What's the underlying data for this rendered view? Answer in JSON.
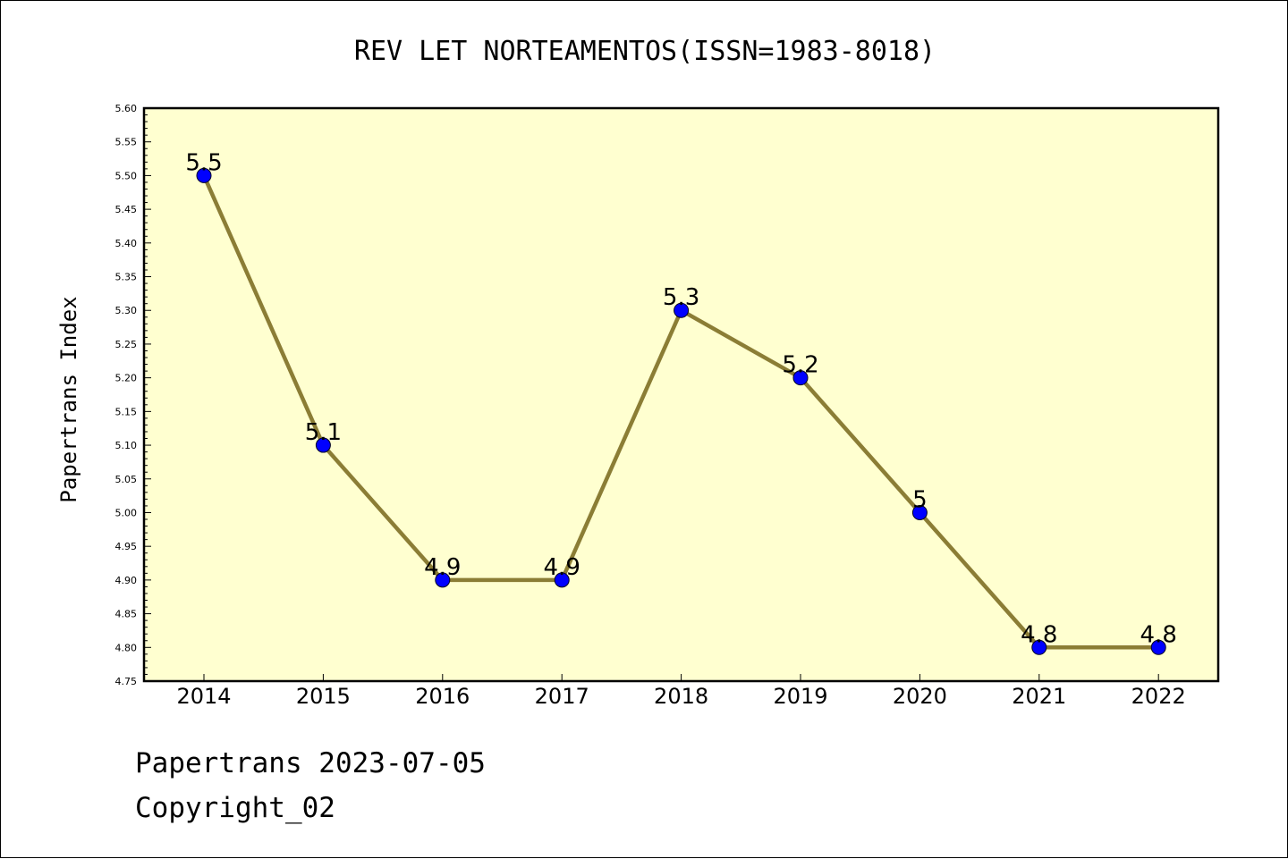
{
  "chart_data": {
    "type": "line",
    "title": "REV LET NORTEAMENTOS(ISSN=1983-8018)",
    "xlabel": "",
    "ylabel": "Papertrans Index",
    "categories": [
      "2014",
      "2015",
      "2016",
      "2017",
      "2018",
      "2019",
      "2020",
      "2021",
      "2022"
    ],
    "series": [
      {
        "values": [
          5.5,
          5.1,
          4.9,
          4.9,
          5.3,
          5.2,
          5.0,
          4.8,
          4.8
        ],
        "data_labels": [
          "5.5",
          "5.1",
          "4.9",
          "4.9",
          "5.3",
          "5.2",
          "5",
          "4.8",
          "4.8"
        ]
      }
    ],
    "ylim": [
      4.75,
      5.6
    ],
    "y_ticks": [
      "4.75",
      "4.80",
      "4.85",
      "4.90",
      "4.95",
      "5.00",
      "5.05",
      "5.10",
      "5.15",
      "5.20",
      "5.25",
      "5.30",
      "5.35",
      "5.40",
      "5.45",
      "5.50",
      "5.55",
      "5.60"
    ],
    "grid": false,
    "colors": {
      "plot_background": "#ffffd0",
      "line": "#8b7d35",
      "marker": "#0000ff"
    }
  },
  "footer": {
    "line1": "Papertrans 2023-07-05",
    "line2": "Copyright_02"
  }
}
